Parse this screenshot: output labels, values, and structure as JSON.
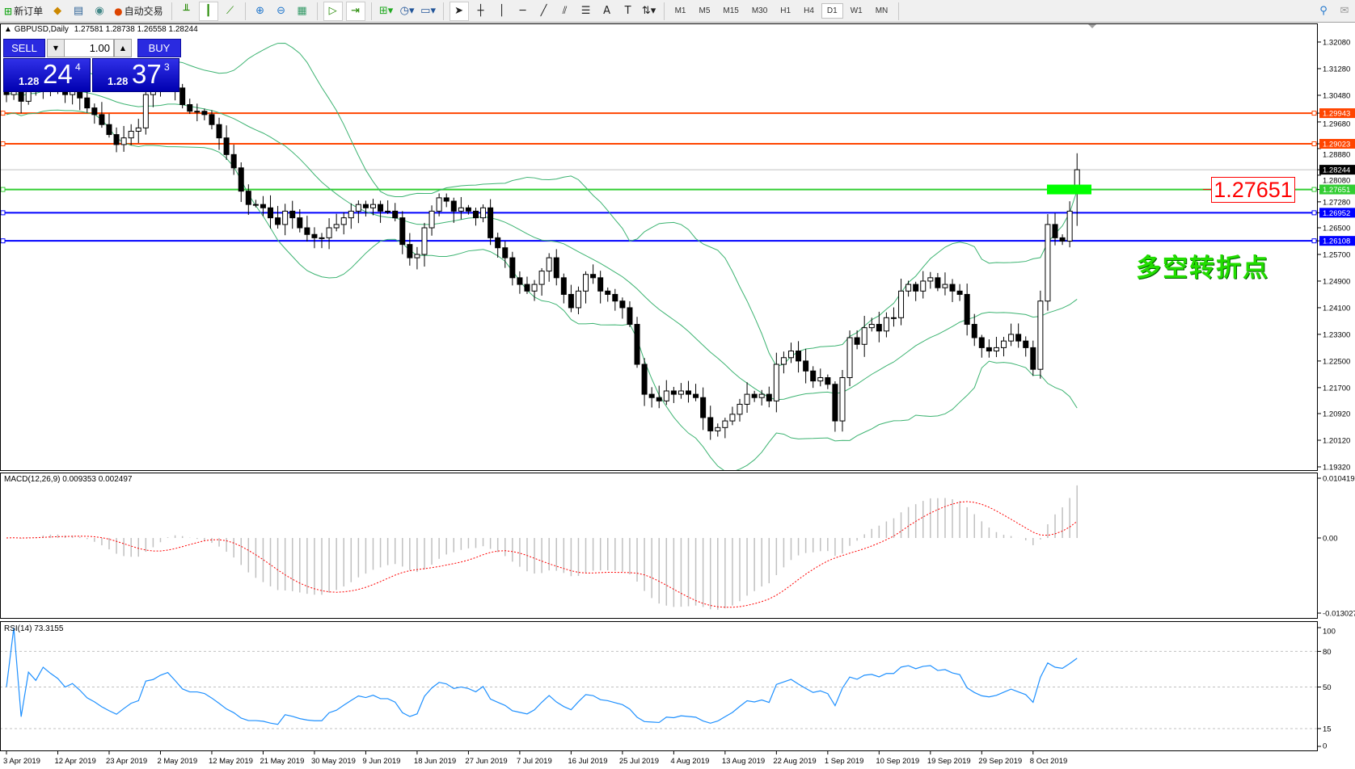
{
  "toolbar": {
    "new_order": "新订单",
    "auto_trading": "自动交易",
    "text_tool": "A",
    "timeframes": [
      "M1",
      "M5",
      "M15",
      "M30",
      "H1",
      "H4",
      "D1",
      "W1",
      "MN"
    ],
    "active_timeframe": "D1"
  },
  "chart": {
    "symbol": "GBPUSD,Daily",
    "ohlc": "1.27581 1.28738 1.26558 1.28244",
    "macd_label": "MACD(12,26,9) 0.009353 0.002497",
    "rsi_label": "RSI(14) 73.3155",
    "annotation_value": "1.27651",
    "annotation_text": "多空转折点",
    "colors": {
      "bollinger": "#3cb371",
      "bull_body": "#ffffff",
      "bear_body": "#000000",
      "macd_hist": "#c0c0c0",
      "macd_signal": "#ff0000",
      "rsi": "#1e90ff",
      "marker_rect": "#00ff00"
    }
  },
  "trade_panel": {
    "sell_label": "SELL",
    "buy_label": "BUY",
    "lot": "1.00",
    "sell_price": {
      "prefix": "1.28",
      "big": "24",
      "sup": "4"
    },
    "buy_price": {
      "prefix": "1.28",
      "big": "37",
      "sup": "3"
    }
  },
  "price_axis": {
    "ticks": [
      "1.32080",
      "1.31280",
      "1.30480",
      "1.29680",
      "1.28880",
      "1.28080",
      "1.27280",
      "1.26500",
      "1.25700",
      "1.24900",
      "1.24100",
      "1.23300",
      "1.22500",
      "1.21700",
      "1.20920",
      "1.20120",
      "1.19320"
    ],
    "current_price": {
      "value": "1.28244",
      "color": "#000000"
    },
    "lines": [
      {
        "value": "1.29943",
        "color": "#ff4500"
      },
      {
        "value": "1.29023",
        "color": "#ff4500"
      },
      {
        "value": "1.27651",
        "color": "#32cd32"
      },
      {
        "value": "1.26952",
        "color": "#0000ff"
      },
      {
        "value": "1.26108",
        "color": "#0000ff"
      }
    ]
  },
  "macd_axis": {
    "ticks": [
      "0.010419",
      "0.00",
      "-0.013027"
    ]
  },
  "rsi_axis": {
    "ticks": [
      "100",
      "80",
      "50",
      "15",
      "0"
    ]
  },
  "chart_data": {
    "type": "candlestick",
    "date_ticks": [
      "3 Apr 2019",
      "12 Apr 2019",
      "23 Apr 2019",
      "2 May 2019",
      "12 May 2019",
      "21 May 2019",
      "30 May 2019",
      "9 Jun 2019",
      "18 Jun 2019",
      "27 Jun 2019",
      "7 Jul 2019",
      "16 Jul 2019",
      "25 Jul 2019",
      "4 Aug 2019",
      "13 Aug 2019",
      "22 Aug 2019",
      "1 Sep 2019",
      "10 Sep 2019",
      "19 Sep 2019",
      "29 Sep 2019",
      "8 Oct 2019"
    ],
    "bars_per_date_tick": 7,
    "close": [
      1.305,
      1.306,
      1.303,
      1.307,
      1.306,
      1.309,
      1.308,
      1.307,
      1.305,
      1.306,
      1.304,
      1.301,
      1.299,
      1.296,
      1.293,
      1.29,
      1.292,
      1.294,
      1.295,
      1.305,
      1.306,
      1.309,
      1.311,
      1.307,
      1.302,
      1.3,
      1.3,
      1.299,
      1.296,
      1.292,
      1.287,
      1.283,
      1.276,
      1.272,
      1.272,
      1.271,
      1.268,
      1.266,
      1.27,
      1.268,
      1.265,
      1.263,
      1.262,
      1.262,
      1.265,
      1.266,
      1.268,
      1.27,
      1.272,
      1.271,
      1.272,
      1.27,
      1.27,
      1.268,
      1.26,
      1.256,
      1.257,
      1.265,
      1.27,
      1.274,
      1.273,
      1.27,
      1.271,
      1.27,
      1.268,
      1.271,
      1.262,
      1.259,
      1.256,
      1.25,
      1.248,
      1.246,
      1.248,
      1.252,
      1.256,
      1.25,
      1.245,
      1.241,
      1.246,
      1.251,
      1.25,
      1.246,
      1.245,
      1.243,
      1.241,
      1.236,
      1.224,
      1.215,
      1.214,
      1.213,
      1.216,
      1.215,
      1.216,
      1.215,
      1.214,
      1.208,
      1.204,
      1.205,
      1.207,
      1.209,
      1.212,
      1.215,
      1.214,
      1.215,
      1.213,
      1.224,
      1.226,
      1.228,
      1.225,
      1.222,
      1.219,
      1.22,
      1.218,
      1.207,
      1.22,
      1.232,
      1.23,
      1.235,
      1.236,
      1.234,
      1.238,
      1.238,
      1.246,
      1.248,
      1.246,
      1.249,
      1.25,
      1.247,
      1.248,
      1.246,
      1.245,
      1.236,
      1.232,
      1.229,
      1.228,
      1.229,
      1.231,
      1.233,
      1.231,
      1.229,
      1.2225,
      1.243,
      1.266,
      1.262,
      1.261,
      1.27,
      1.28244
    ],
    "last_bar": {
      "open": 1.27581,
      "high": 1.28738,
      "low": 1.26558,
      "close": 1.28244
    },
    "indicators": [
      "Bollinger Bands(20,2)",
      "MACD(12,26,9)",
      "RSI(14)"
    ],
    "price_range": [
      1.1932,
      1.3208
    ],
    "macd_range": [
      -0.013027,
      0.010419
    ],
    "rsi_range": [
      0,
      100
    ],
    "rsi_levels": [
      80,
      50,
      15
    ],
    "grid": false
  }
}
